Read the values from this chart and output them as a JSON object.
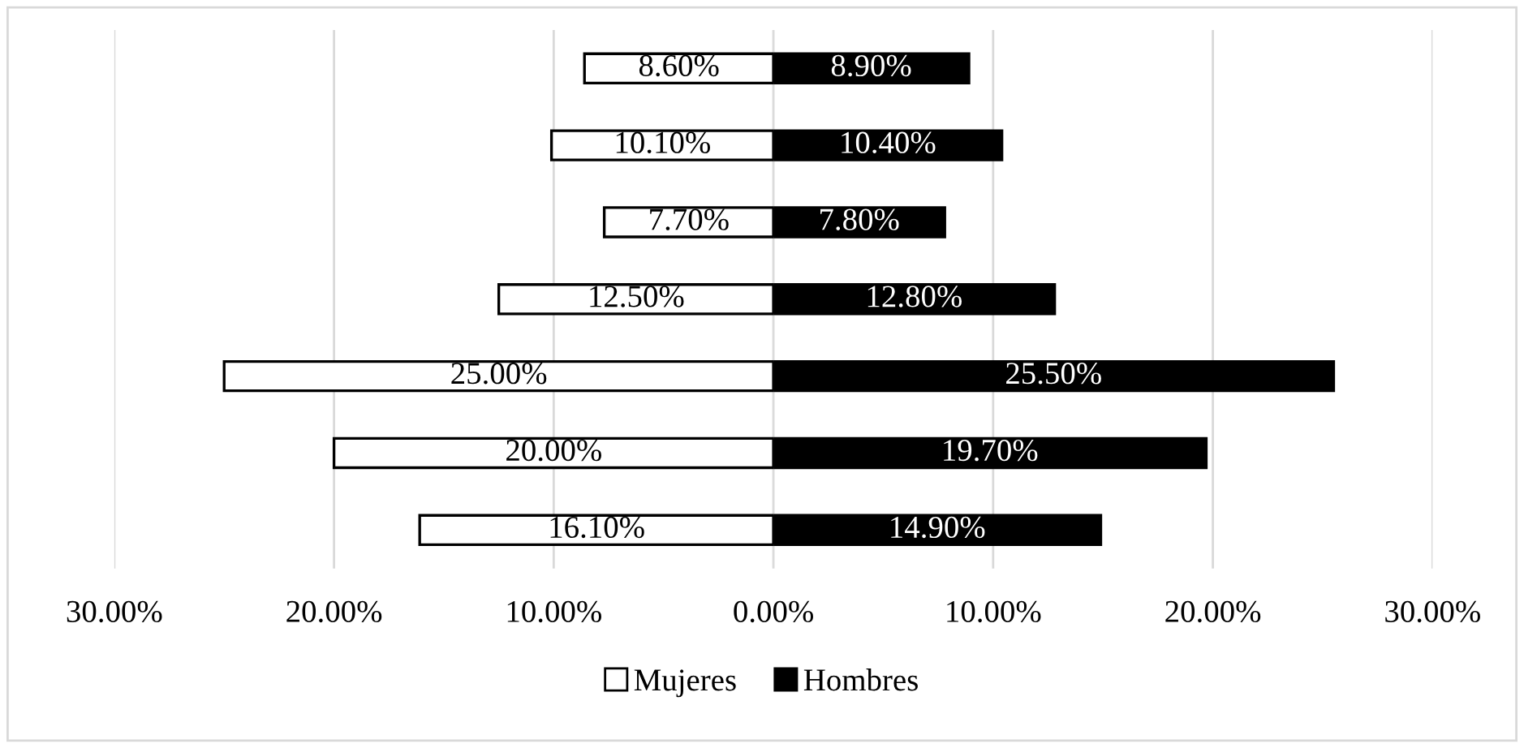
{
  "chart_data": [
    {
      "type": "bar",
      "orientation": "horizontal",
      "categories": [
        null,
        null,
        null,
        null,
        null,
        null,
        null
      ],
      "series": [
        {
          "name": "Mujeres",
          "color": "#ffffff",
          "values": [
            8.6,
            10.1,
            7.7,
            12.5,
            25.0,
            20.0,
            16.1
          ],
          "value_labels": [
            "8.60%",
            "10.10%",
            "7.70%",
            "12.50%",
            "25.00%",
            "20.00%",
            "16.10%"
          ]
        }
      ],
      "xlim": [
        30,
        0
      ],
      "xticks": [
        {
          "value": 30,
          "label": "30.00%"
        },
        {
          "value": 20,
          "label": "20.00%"
        },
        {
          "value": 10,
          "label": "10.00%"
        },
        {
          "value": 0,
          "label": null
        }
      ],
      "grid": "x",
      "legend": "bottom"
    },
    {
      "type": "bar",
      "orientation": "horizontal",
      "categories": [
        null,
        null,
        null,
        null,
        null,
        null,
        null
      ],
      "series": [
        {
          "name": "Hombres",
          "color": "#000000",
          "values": [
            8.9,
            10.4,
            7.8,
            12.8,
            25.5,
            19.7,
            14.9
          ],
          "value_labels": [
            "8.90%",
            "10.40%",
            "7.80%",
            "12.80%",
            "25.50%",
            "19.70%",
            "14.90%"
          ]
        }
      ],
      "xlim": [
        0,
        30
      ],
      "xticks": [
        {
          "value": 0,
          "label": "0.00%"
        },
        {
          "value": 10,
          "label": "10.00%"
        },
        {
          "value": 20,
          "label": "20.00%"
        },
        {
          "value": 30,
          "label": "30.00%"
        }
      ],
      "grid": "x",
      "legend": "bottom"
    }
  ]
}
